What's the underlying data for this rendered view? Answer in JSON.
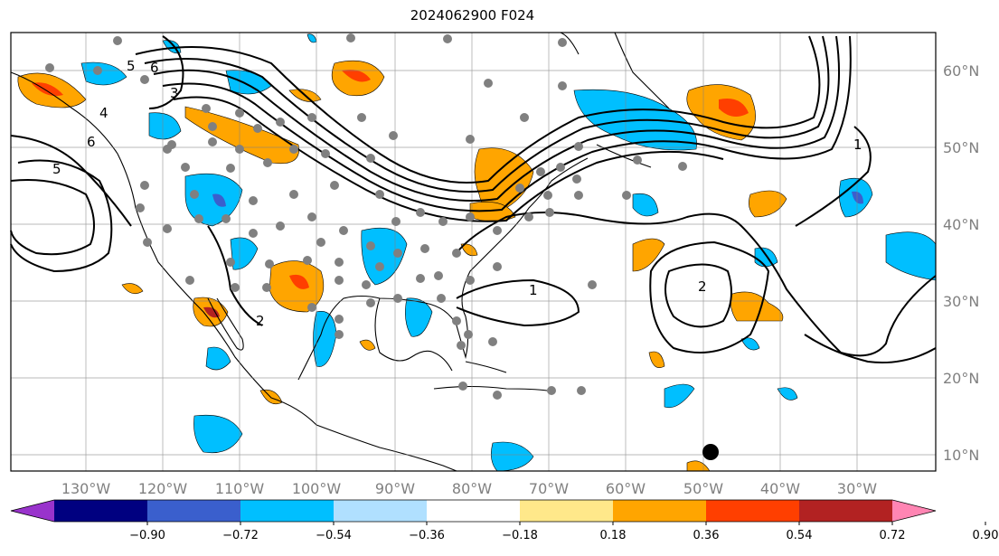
{
  "title": "2024062900 F024",
  "map": {
    "lon_ticks": [
      "130°W",
      "120°W",
      "110°W",
      "100°W",
      "90°W",
      "80°W",
      "70°W",
      "60°W",
      "50°W",
      "40°W",
      "30°W"
    ],
    "lat_ticks": [
      "60°N",
      "50°N",
      "40°N",
      "30°N",
      "20°N",
      "10°N"
    ],
    "contour_labels": [
      "5",
      "6",
      "3",
      "4",
      "6",
      "5",
      "1",
      "1",
      "2",
      "2"
    ]
  },
  "colorbar": {
    "tick_labels": [
      "−0.90",
      "−0.72",
      "−0.54",
      "−0.36",
      "−0.18",
      "0.18",
      "0.36",
      "0.54",
      "0.72",
      "0.90"
    ],
    "colors": [
      "#9933cc",
      "#000080",
      "#3a5fcd",
      "#00bfff",
      "#b0e0ff",
      "#ffffff",
      "#ffe88a",
      "#ffa500",
      "#ff3f00",
      "#b22222",
      "#ff85b3"
    ]
  }
}
